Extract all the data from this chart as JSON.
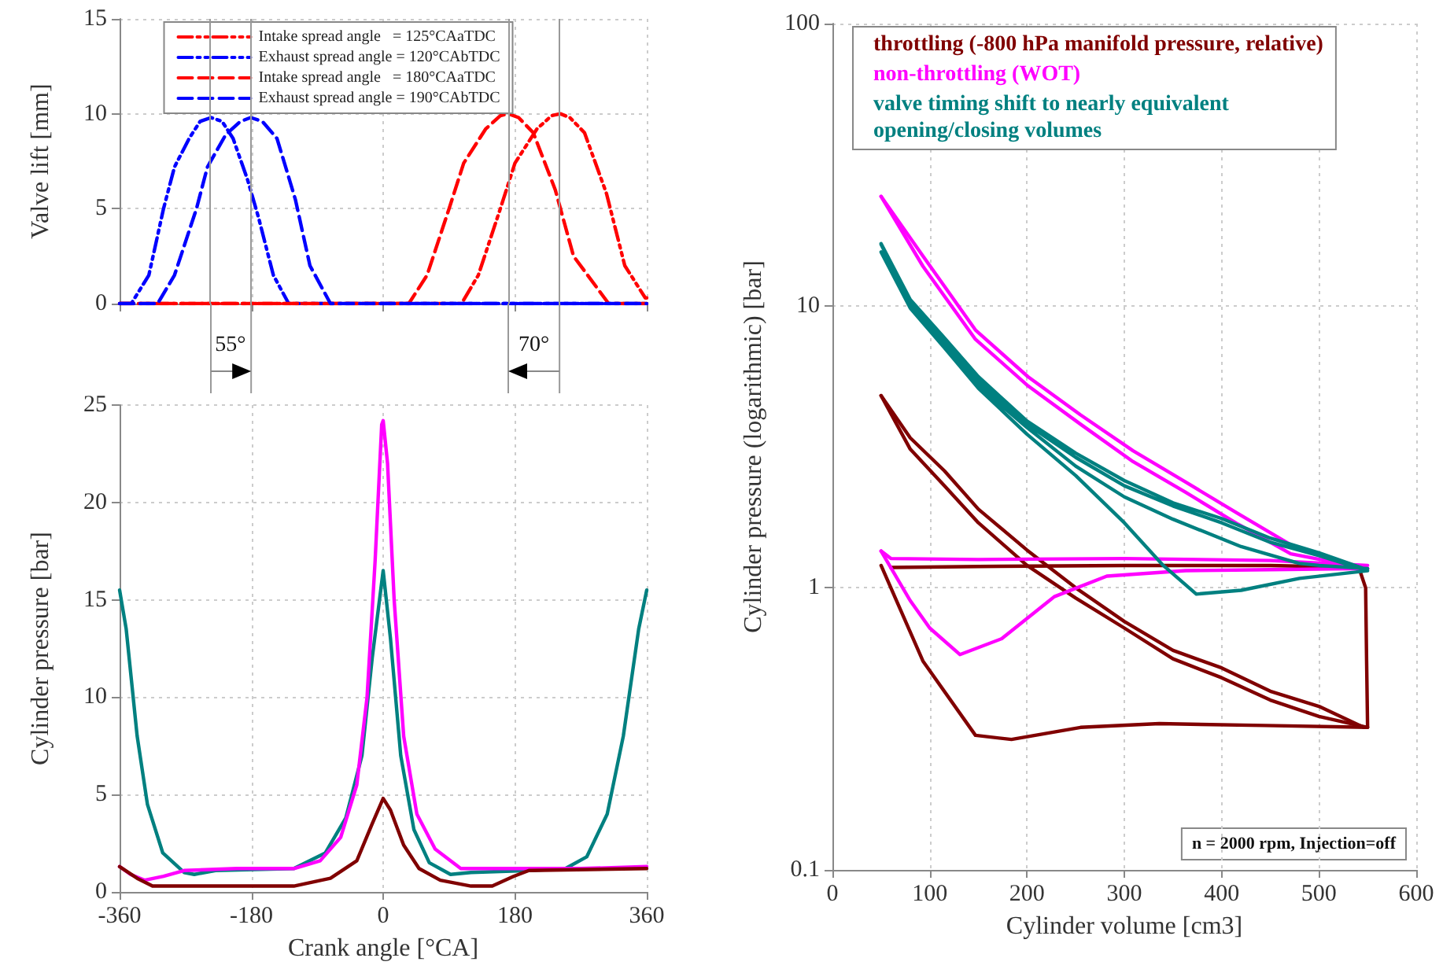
{
  "chart_data": [
    {
      "type": "line",
      "ylabel": "Valve lift [mm]",
      "xlim": [
        -360,
        360
      ],
      "xticks": [
        -360,
        -180,
        0,
        180,
        360
      ],
      "ylim": [
        0,
        15
      ],
      "yticks": [
        0,
        5,
        10,
        15
      ],
      "tick_labels": "y",
      "grid": true,
      "legend": "top",
      "marker": "none",
      "series": [
        {
          "name": "Intake spread angle   = 125°CAaTDC",
          "color": "#ff0000",
          "line_style": "dotted",
          "x": [
            -360,
            107,
            130,
            160,
            180,
            210,
            230,
            242,
            255,
            275,
            305,
            330,
            358,
            360
          ],
          "values": [
            0,
            0,
            1.5,
            5,
            7.4,
            9.2,
            9.9,
            10,
            9.8,
            9,
            5.8,
            2,
            0.3,
            0.3
          ]
        },
        {
          "name": "Exhaust spread angle = 120°CAbTDC",
          "color": "#0000ff",
          "line_style": "dotted",
          "x": [
            -360,
            -344,
            -320,
            -300,
            -285,
            -265,
            -250,
            -235,
            -220,
            -205,
            -185,
            -170,
            -150,
            -129,
            360
          ],
          "values": [
            0,
            0,
            1.5,
            5,
            7.2,
            8.7,
            9.6,
            9.8,
            9.6,
            8.7,
            6.5,
            4.5,
            1.5,
            0,
            0
          ]
        },
        {
          "name": "Intake spread angle   = 180°CAaTDC",
          "color": "#ff0000",
          "line_style": "dashed",
          "x": [
            -360,
            35,
            60,
            90,
            110,
            140,
            160,
            171,
            185,
            205,
            235,
            260,
            308,
            360
          ],
          "values": [
            0,
            0,
            1.5,
            5,
            7.4,
            9.2,
            9.9,
            10,
            9.8,
            9,
            6,
            2.5,
            0,
            0
          ]
        },
        {
          "name": "Exhaust spread angle = 190°CAbTDC",
          "color": "#0000ff",
          "line_style": "dashed",
          "x": [
            -360,
            -308,
            -285,
            -255,
            -240,
            -215,
            -195,
            -181,
            -165,
            -145,
            -120,
            -100,
            -72,
            360
          ],
          "values": [
            0,
            0,
            1.5,
            5,
            7.2,
            8.9,
            9.6,
            9.8,
            9.6,
            8.7,
            5.5,
            2,
            0,
            0
          ]
        }
      ],
      "ref_lines": [
        {
          "axis": "x",
          "value": -236,
          "color": "#999999"
        },
        {
          "axis": "x",
          "value": -181,
          "color": "#999999"
        },
        {
          "axis": "x",
          "value": 241,
          "color": "#999999"
        },
        {
          "axis": "x",
          "value": 171,
          "color": "#999999"
        }
      ],
      "annotations": [
        "55°",
        "70°"
      ]
    },
    {
      "type": "line",
      "xlabel": "Crank angle [°CA]",
      "ylabel": "Cylinder pressure [bar]",
      "xlim": [
        -360,
        360
      ],
      "xticks": [
        -360,
        -180,
        0,
        180,
        360
      ],
      "ylim": [
        0,
        25
      ],
      "yticks": [
        0,
        5,
        10,
        15,
        20,
        25
      ],
      "grid": true,
      "marker": "none",
      "series": [
        {
          "color": "#008080",
          "x": [
            -360,
            -351,
            -336,
            -322,
            -301,
            -272,
            -258,
            -229,
            -122,
            -79,
            -51,
            -29,
            -15,
            0,
            10,
            24,
            42,
            63,
            92,
            120,
            200,
            249,
            278,
            306,
            328,
            349,
            360
          ],
          "values": [
            15.5,
            13.5,
            8,
            4.5,
            2,
            1,
            0.9,
            1.1,
            1.2,
            2,
            3.8,
            7,
            12,
            16.5,
            13,
            7,
            3.2,
            1.5,
            0.9,
            1,
            1.1,
            1.2,
            1.8,
            4,
            8,
            13.5,
            15.5
          ]
        },
        {
          "color": "#ff00ff",
          "x": [
            -360,
            -345,
            -326,
            -300,
            -272,
            -200,
            -122,
            -86,
            -58,
            -36,
            -22,
            -11,
            -2,
            0,
            6,
            15,
            28,
            46,
            71,
            106,
            180,
            270,
            360
          ],
          "values": [
            1.3,
            0.9,
            0.6,
            0.8,
            1.1,
            1.2,
            1.2,
            1.6,
            2.8,
            5.5,
            10,
            17,
            24,
            24.2,
            22,
            15,
            8,
            4,
            2.2,
            1.2,
            1.2,
            1.2,
            1.3
          ]
        },
        {
          "color": "#800000",
          "x": [
            -360,
            -336,
            -315,
            -200,
            -122,
            -72,
            -36,
            -15,
            0,
            10,
            28,
            49,
            78,
            120,
            149,
            178,
            199,
            360
          ],
          "values": [
            1.3,
            0.7,
            0.3,
            0.3,
            0.3,
            0.7,
            1.6,
            3.5,
            4.8,
            4.2,
            2.4,
            1.2,
            0.6,
            0.3,
            0.3,
            0.8,
            1.1,
            1.2
          ]
        }
      ]
    },
    {
      "type": "line",
      "xlabel": "Cylinder volume [cm3]",
      "ylabel": "Cylinder pressure (logarithmic) [bar]",
      "xlim": [
        0,
        600
      ],
      "xticks": [
        0,
        100,
        200,
        300,
        400,
        500,
        600
      ],
      "ylim": [
        0.1,
        100
      ],
      "yticks": [
        0.1,
        1,
        10,
        100
      ],
      "log": "y",
      "grid": true,
      "legend": "top",
      "marker": "none",
      "series": [
        {
          "name": "throttling (-800 hPa manifold pressure, relative)",
          "color": "#800000",
          "x": [
            50,
            80,
            115,
            150,
            200,
            250,
            300,
            350,
            400,
            450,
            500,
            546
          ],
          "values": [
            4.8,
            3.4,
            2.6,
            1.9,
            1.36,
            1,
            0.76,
            0.6,
            0.52,
            0.43,
            0.38,
            0.32
          ]
        },
        {
          "color": "#800000",
          "x": [
            550,
            549,
            548,
            541,
            450,
            300,
            150,
            60
          ],
          "values": [
            0.32,
            0.55,
            1,
            1.18,
            1.2,
            1.2,
            1.19,
            1.18
          ]
        },
        {
          "color": "#800000",
          "x": [
            50,
            93,
            147,
            184,
            255,
            336,
            444,
            550
          ],
          "values": [
            1.2,
            0.55,
            0.3,
            0.29,
            0.32,
            0.33,
            0.325,
            0.32
          ]
        },
        {
          "color": "#800000",
          "x": [
            550,
            500,
            450,
            400,
            350,
            300,
            250,
            200,
            150,
            115,
            80,
            50
          ],
          "values": [
            0.32,
            0.35,
            0.4,
            0.48,
            0.56,
            0.72,
            0.92,
            1.2,
            1.7,
            2.3,
            3.1,
            4.8
          ]
        },
        {
          "name": "non-throttling (WOT)",
          "color": "#ff00ff",
          "x": [
            50,
            93,
            147,
            201,
            255,
            309,
            363,
            417,
            471,
            546
          ],
          "values": [
            24.4,
            15,
            8.2,
            5.6,
            4.1,
            3.06,
            2.37,
            1.83,
            1.42,
            1.17
          ]
        },
        {
          "color": "#ff00ff",
          "x": [
            550,
            450,
            300,
            150,
            60,
            50
          ],
          "values": [
            1.2,
            1.25,
            1.27,
            1.26,
            1.27,
            1.35
          ]
        },
        {
          "color": "#ff00ff",
          "x": [
            50,
            80,
            100,
            131,
            174,
            228,
            282,
            363,
            450,
            550
          ],
          "values": [
            1.35,
            0.9,
            0.72,
            0.58,
            0.66,
            0.93,
            1.1,
            1.15,
            1.16,
            1.17
          ]
        },
        {
          "color": "#ff00ff",
          "x": [
            550,
            471,
            417,
            363,
            309,
            255,
            201,
            147,
            93,
            50
          ],
          "values": [
            1.17,
            1.32,
            1.68,
            2.18,
            2.8,
            3.8,
            5.2,
            7.6,
            13.8,
            24.4
          ]
        },
        {
          "name": "valve timing shift to nearly equivalent\nopening/closing volumes",
          "color": "#008080",
          "x": [
            50,
            80,
            115,
            150,
            200,
            250,
            300,
            350,
            400,
            450,
            500,
            546,
            550,
            500,
            480,
            420,
            350,
            300,
            250,
            200,
            150,
            115,
            80,
            50,
            80,
            115,
            150,
            200,
            250,
            300,
            340,
            374,
            420,
            480,
            550,
            500,
            450,
            400,
            350,
            300,
            250,
            200,
            150,
            115,
            80,
            50
          ],
          "values": [
            16.6,
            10.5,
            7.7,
            5.6,
            3.9,
            3,
            2.4,
            2,
            1.76,
            1.5,
            1.33,
            1.17,
            1.17,
            1.2,
            1.22,
            1.4,
            1.75,
            2.1,
            2.7,
            3.7,
            5.2,
            7.2,
            10.2,
            15.5,
            9.8,
            7.1,
            5.1,
            3.5,
            2.5,
            1.7,
            1.2,
            0.95,
            0.98,
            1.08,
            1.15,
            1.3,
            1.45,
            1.7,
            1.95,
            2.3,
            2.9,
            3.8,
            5.4,
            7.5,
            10.3,
            16.5
          ]
        }
      ],
      "annotations": [
        "n = 2000 rpm, Injection=off"
      ]
    }
  ]
}
